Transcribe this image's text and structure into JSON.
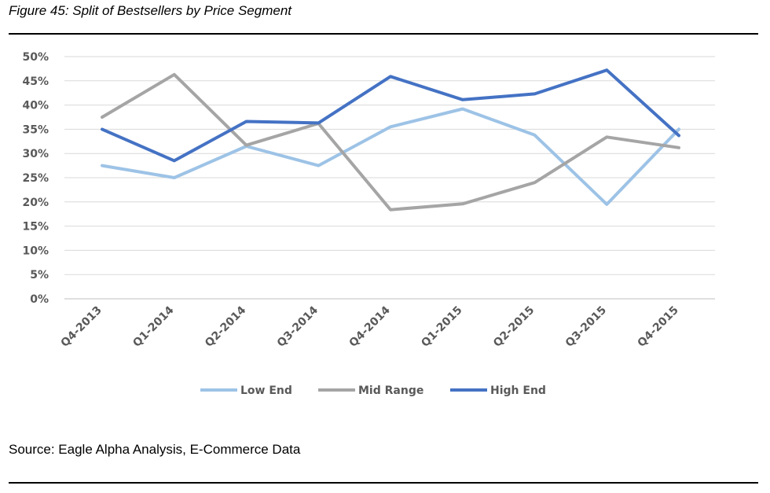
{
  "figure_title": "Figure 45: Split of Bestsellers by Price Segment",
  "source": "Source: Eagle Alpha Analysis, E-Commerce Data",
  "chart_data": {
    "type": "line",
    "title": "",
    "xlabel": "",
    "ylabel": "",
    "ylim": [
      0,
      50
    ],
    "y_ticks": [
      "0%",
      "5%",
      "10%",
      "15%",
      "20%",
      "25%",
      "30%",
      "35%",
      "40%",
      "45%",
      "50%"
    ],
    "categories": [
      "Q4-2013",
      "Q1-2014",
      "Q2-2014",
      "Q3-2014",
      "Q4-2014",
      "Q1-2015",
      "Q2-2015",
      "Q3-2015",
      "Q4-2015"
    ],
    "grid": true,
    "legend_position": "bottom",
    "series": [
      {
        "name": "Low End",
        "color": "#9dc3e6",
        "values": [
          27.5,
          25,
          31.5,
          27.5,
          35.5,
          39.2,
          33.8,
          19.5,
          35
        ]
      },
      {
        "name": "Mid Range",
        "color": "#a5a5a5",
        "values": [
          37.5,
          46.3,
          31.7,
          36.2,
          18.4,
          19.6,
          24,
          33.4,
          31.2
        ]
      },
      {
        "name": "High End",
        "color": "#4472c4",
        "values": [
          35,
          28.5,
          36.6,
          36.3,
          45.9,
          41.1,
          42.3,
          47.2,
          33.7
        ]
      }
    ]
  }
}
